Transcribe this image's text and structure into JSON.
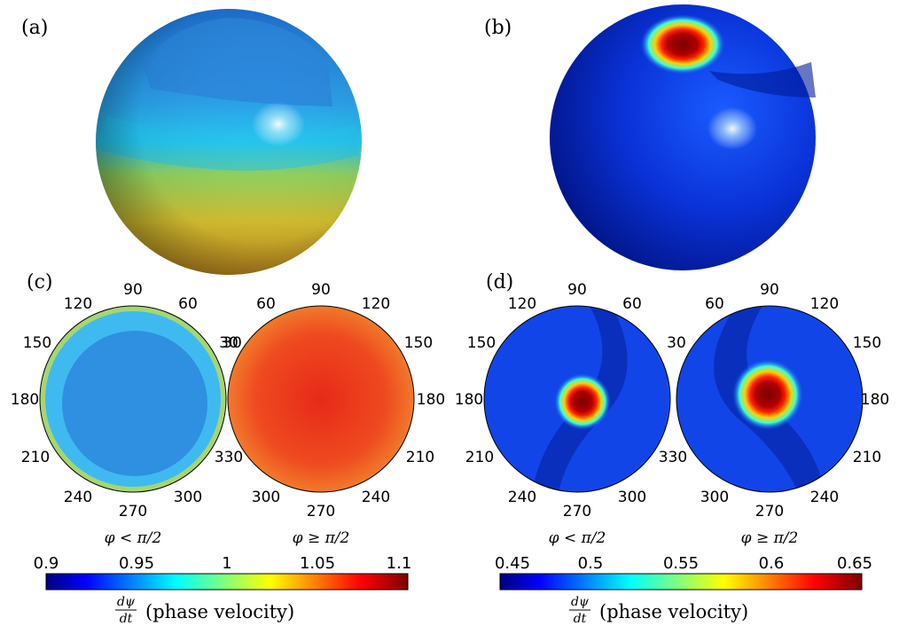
{
  "panels": {
    "a": {
      "label": "(a)"
    },
    "b": {
      "label": "(b)"
    },
    "c": {
      "label": "(c)",
      "left_angles": [
        "90",
        "60",
        "120",
        "30",
        "150",
        "180",
        "210",
        "330",
        "240",
        "300",
        "270"
      ],
      "right_angles": [
        "90",
        "120",
        "60",
        "150",
        "30",
        "180",
        "210",
        "330",
        "240",
        "300",
        "270"
      ],
      "left_caption": "φ < π/2",
      "right_caption": "φ ≥ π/2"
    },
    "d": {
      "label": "(d)",
      "left_angles": [
        "90",
        "60",
        "120",
        "30",
        "150",
        "180",
        "210",
        "330",
        "240",
        "300",
        "270"
      ],
      "right_angles": [
        "90",
        "120",
        "60",
        "150",
        "30",
        "180",
        "210",
        "330",
        "240",
        "300",
        "270"
      ],
      "left_caption": "φ < π/2",
      "right_caption": "φ ≥ π/2"
    }
  },
  "colorbars": [
    {
      "ticks": [
        "0.9",
        "0.95",
        "1",
        "1.05",
        "1.1"
      ],
      "min": 0.9,
      "max": 1.1,
      "label_frac_num": "dψ",
      "label_frac_den": "dt",
      "label_text": "(phase velocity)"
    },
    {
      "ticks": [
        "0.45",
        "0.5",
        "0.55",
        "0.6",
        "0.65"
      ],
      "min": 0.45,
      "max": 0.65,
      "label_frac_num": "dψ",
      "label_frac_den": "dt",
      "label_text": "(phase velocity)"
    }
  ],
  "colors": {
    "jet_dark_blue": "#000080",
    "jet_blue": "#0000ff",
    "jet_cyan": "#00ffff",
    "jet_yellow": "#ffff00",
    "jet_red": "#ff0000",
    "jet_dark_red": "#800000"
  }
}
